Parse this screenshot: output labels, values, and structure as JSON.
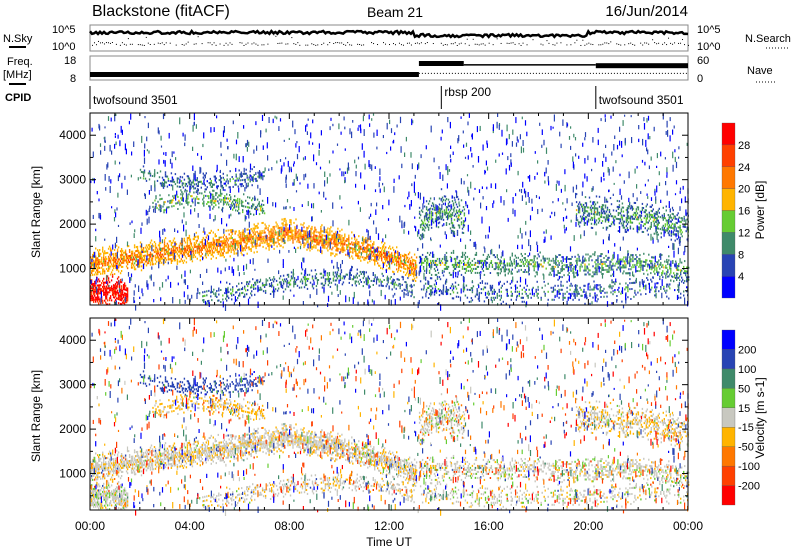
{
  "header": {
    "station": "Blackstone (fitACF)",
    "beam": "Beam 21",
    "date": "16/Jun/2014"
  },
  "noise_panel": {
    "left_label": "N.Sky",
    "right_label": "N.Search",
    "left_ticks": [
      "10^5",
      "10^0"
    ],
    "right_ticks": [
      "10^5",
      "10^0"
    ]
  },
  "freq_panel": {
    "left_label_1": "Freq.",
    "left_label_2": "[MHz]",
    "right_label": "Nave",
    "left_ticks": [
      "18",
      "8"
    ],
    "right_ticks": [
      "60",
      "0"
    ],
    "freq_segments": [
      {
        "t0": 0,
        "t1": 13.2,
        "mhz": 10.5
      },
      {
        "t0": 13.2,
        "t1": 15.0,
        "mhz": 15.5
      },
      {
        "t0": 15.0,
        "t1": 20.3,
        "mhz": 15.0
      },
      {
        "t0": 20.3,
        "t1": 24,
        "mhz": 14.5
      }
    ],
    "nave_segments": [
      {
        "t0": 0,
        "t1": 13.2,
        "nave": 12
      },
      {
        "t0": 13.2,
        "t1": 24,
        "nave": 18
      }
    ]
  },
  "cpid_panel": {
    "label": "CPID",
    "programs": [
      {
        "name": "twofsound 3501",
        "t0": 0
      },
      {
        "name": "rbsp 200",
        "t0": 14.1
      },
      {
        "name": "twofsound 3501",
        "t0": 20.3
      }
    ]
  },
  "chart_data": {
    "type": "heatmap",
    "xlabel": "Time UT",
    "ylabel": "Slant Range [km]",
    "xlim": [
      0,
      24
    ],
    "ylim": [
      180,
      4500
    ],
    "xticks": [
      "00:00",
      "04:00",
      "08:00",
      "12:00",
      "16:00",
      "20:00",
      "00:00"
    ],
    "yticks": [
      "1000",
      "2000",
      "3000",
      "4000"
    ],
    "power": {
      "colorbar_label": "Power [dB]",
      "colorbar_ticks": [
        "28",
        "24",
        "20",
        "16",
        "12",
        "8",
        "4"
      ],
      "levels": [
        4,
        8,
        12,
        16,
        20,
        24,
        28
      ],
      "colors": [
        "#0000ff",
        "#2844b4",
        "#3f8a6a",
        "#66cc33",
        "#ffb400",
        "#ff7800",
        "#ff4000",
        "#ff0000"
      ]
    },
    "velocity": {
      "colorbar_label": "Velocity [m s-1]",
      "colorbar_ticks": [
        "200",
        "100",
        "50",
        "15",
        "-15",
        "-50",
        "-100",
        "-200"
      ],
      "levels": [
        -200,
        -100,
        -50,
        -15,
        15,
        50,
        100,
        200
      ],
      "colors": [
        "#ff0000",
        "#ff4000",
        "#ff7800",
        "#ffb400",
        "#c8c8c0",
        "#66cc33",
        "#3f8a6a",
        "#2844b4",
        "#0000ff"
      ]
    },
    "echo_regions": [
      {
        "t": [
          0,
          2,
          4,
          6,
          8,
          10,
          12,
          13.1
        ],
        "r": [
          1100,
          1250,
          1450,
          1600,
          1800,
          1550,
          1250,
          1000
        ],
        "width": 350,
        "power": 17,
        "vel": -5,
        "density": 0.75
      },
      {
        "t": [
          0,
          0.8,
          1.5
        ],
        "r": [
          450,
          500,
          350
        ],
        "width": 400,
        "power": 27,
        "vel": 0,
        "density": 0.85
      },
      {
        "t": [
          4.5,
          6,
          8,
          10,
          12,
          13
        ],
        "r": [
          300,
          500,
          700,
          800,
          700,
          500
        ],
        "width": 250,
        "power": 6,
        "vel": -5,
        "density": 0.35
      },
      {
        "t": [
          2,
          3,
          4,
          5,
          6,
          7
        ],
        "r": [
          3100,
          3000,
          2900,
          2950,
          3000,
          3050
        ],
        "width": 250,
        "power": 5,
        "vel": 150,
        "density": 0.35
      },
      {
        "t": [
          2.5,
          4,
          5.5,
          7
        ],
        "r": [
          2400,
          2600,
          2500,
          2300
        ],
        "width": 250,
        "power": 9,
        "vel": -20,
        "density": 0.4
      },
      {
        "t": [
          13.2,
          14,
          15
        ],
        "r": [
          2000,
          2300,
          2100
        ],
        "width": 500,
        "power": 7,
        "vel": 0,
        "density": 0.45
      },
      {
        "t": [
          13.2,
          16,
          19,
          22,
          24
        ],
        "r": [
          1100,
          1100,
          1050,
          1100,
          900
        ],
        "width": 300,
        "power": 8,
        "vel": 0,
        "density": 0.45
      },
      {
        "t": [
          19.5,
          21,
          22.5,
          24
        ],
        "r": [
          2300,
          2200,
          2100,
          1900
        ],
        "width": 400,
        "power": 7,
        "vel": -10,
        "density": 0.5
      },
      {
        "t": [
          13.2,
          16,
          20,
          24
        ],
        "r": [
          600,
          450,
          450,
          600
        ],
        "width": 300,
        "power": 5,
        "vel": 0,
        "density": 0.25
      }
    ]
  }
}
